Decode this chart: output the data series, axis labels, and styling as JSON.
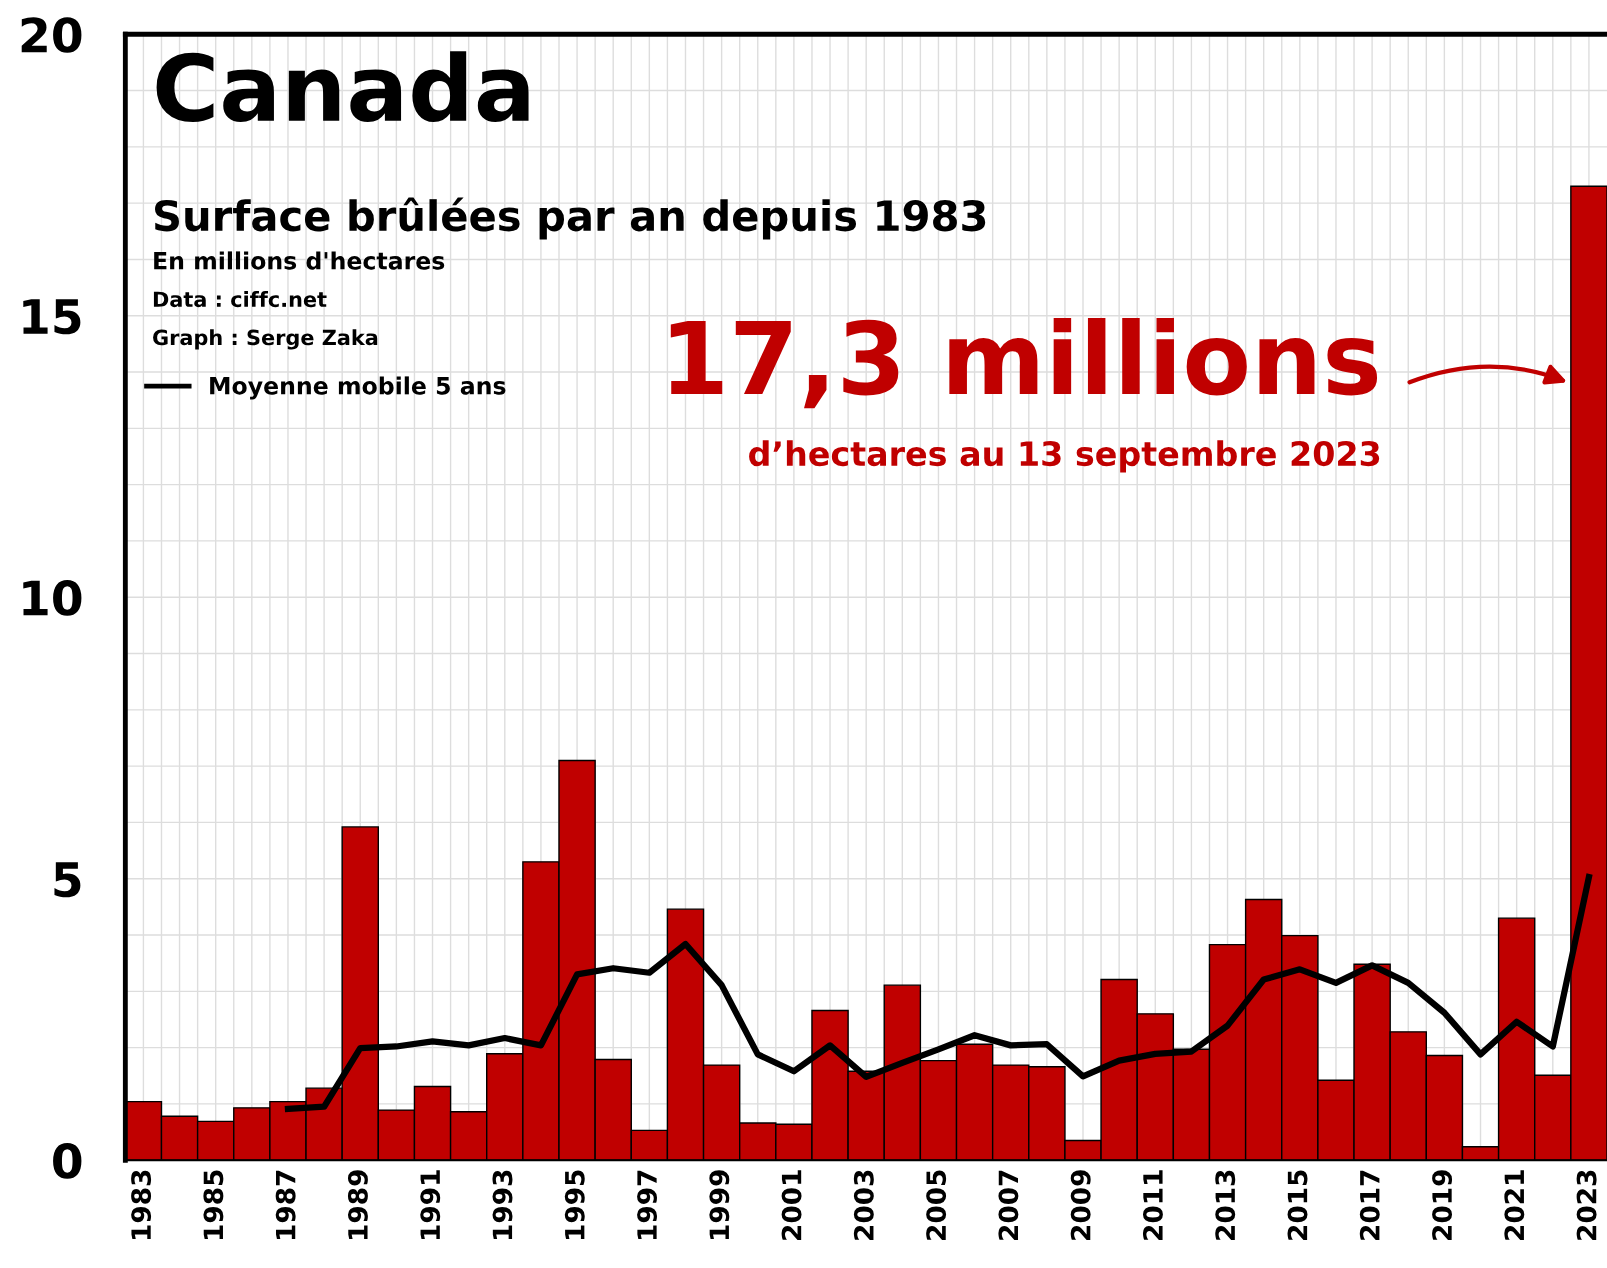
{
  "chart_data": {
    "type": "bar",
    "title": "Canada",
    "subtitle": "Surface brûlées par an depuis 1983",
    "categories": [
      "1983",
      null,
      "1985",
      null,
      "1987",
      null,
      "1989",
      null,
      "1991",
      null,
      "1993",
      null,
      "1995",
      null,
      "1997",
      null,
      "1999",
      null,
      "2001",
      null,
      "2003",
      null,
      "2005",
      null,
      "2007",
      null,
      "2009",
      null,
      "2011",
      null,
      "2013",
      null,
      "2015",
      null,
      "2017",
      null,
      "2019",
      null,
      "2021",
      null,
      "2023"
    ],
    "series": [
      {
        "color": "#c00000",
        "values": [
          1.04,
          0.78,
          0.69,
          0.93,
          1.04,
          1.28,
          5.92,
          0.89,
          1.31,
          0.86,
          1.89,
          5.3,
          7.1,
          1.79,
          0.53,
          4.46,
          1.69,
          0.66,
          0.64,
          2.66,
          1.58,
          3.11,
          1.77,
          2.06,
          1.69,
          1.66,
          0.35,
          3.21,
          2.6,
          1.97,
          3.83,
          4.63,
          3.99,
          1.42,
          3.48,
          2.28,
          1.86,
          0.24,
          4.3,
          1.51,
          17.3
        ]
      },
      {
        "type": "line",
        "name": "Moyenne mobile 5 ans",
        "color": "#000000",
        "values": [
          null,
          null,
          null,
          null,
          0.91,
          0.95,
          1.99,
          2.02,
          2.11,
          2.04,
          2.17,
          2.04,
          3.3,
          3.41,
          3.33,
          3.84,
          3.11,
          1.88,
          1.58,
          2.04,
          1.48,
          1.73,
          1.97,
          2.22,
          2.04,
          2.06,
          1.49,
          1.77,
          1.89,
          1.93,
          2.39,
          3.21,
          3.39,
          3.15,
          3.46,
          3.15,
          2.62,
          1.88,
          2.46,
          2.02,
          5.03
        ]
      }
    ],
    "ylim": [
      0,
      20
    ],
    "yticks": [
      0,
      5,
      10,
      15,
      20
    ],
    "grid": true,
    "legend": "top left",
    "line_style": "solid",
    "marker": "none",
    "annotations": [
      "17,3 millions",
      "d’hectares au 13 septembre 2023",
      "En millions d'hectares",
      "Data : ciffc.net",
      "Graph : Serge Zaka"
    ]
  }
}
